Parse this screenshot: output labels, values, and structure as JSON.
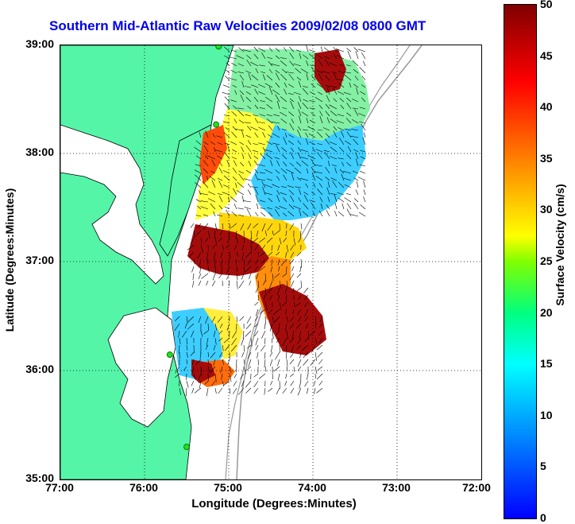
{
  "title": "Southern Mid-Atlantic Raw Velocities 2009/02/08 0800 GMT",
  "x_axis": {
    "label": "Longitude (Degrees:Minutes)",
    "ticks": [
      "77:00",
      "76:00",
      "75:00",
      "74:00",
      "73:00",
      "72:00"
    ]
  },
  "y_axis": {
    "label": "Latitude (Degrees:Minutes)",
    "ticks": [
      "39:00",
      "38:00",
      "37:00",
      "36:00",
      "35:00"
    ]
  },
  "colorbar": {
    "label": "Surface Velocity (cm/s)",
    "ticks": [
      "50",
      "45",
      "40",
      "35",
      "30",
      "25",
      "20",
      "15",
      "10",
      "5",
      "0"
    ]
  },
  "colors": {
    "land": "#55f5a8",
    "coast": "#000000",
    "bathy": "#999999",
    "station": "#20e020"
  },
  "stations": [
    {
      "lon": -75.12,
      "lat": 38.99
    },
    {
      "lon": -75.15,
      "lat": 38.27
    },
    {
      "lon": -75.7,
      "lat": 36.15
    },
    {
      "lon": -75.5,
      "lat": 35.3
    }
  ]
}
